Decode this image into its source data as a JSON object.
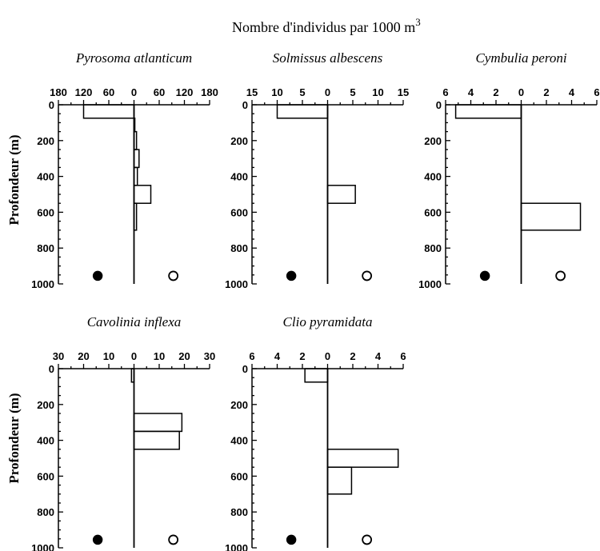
{
  "figure": {
    "title": "Nombre d'individus par 1000 m",
    "title_superscript": "3",
    "ylabel": "Profondeur (m)"
  },
  "chart_data": [
    {
      "type": "bar",
      "title": "Pyrosoma atlanticum",
      "xlim": [
        -180,
        180
      ],
      "x_ticks": [
        -180,
        -120,
        -60,
        0,
        60,
        120,
        180
      ],
      "x_tick_labels": [
        "180",
        "120",
        "60",
        "0",
        "60",
        "120",
        "180"
      ],
      "ylim": [
        0,
        1000
      ],
      "y_ticks": [
        0,
        200,
        400,
        600,
        800,
        1000
      ],
      "day_symbol": "filled-circle",
      "night_symbol": "open-circle",
      "day": [
        {
          "depth": [
            0,
            75
          ],
          "value": 120
        }
      ],
      "night": [
        {
          "depth": [
            75,
            150
          ],
          "value": 2
        },
        {
          "depth": [
            150,
            250
          ],
          "value": 6
        },
        {
          "depth": [
            250,
            350
          ],
          "value": 12
        },
        {
          "depth": [
            350,
            450
          ],
          "value": 8
        },
        {
          "depth": [
            450,
            550
          ],
          "value": 40
        },
        {
          "depth": [
            550,
            700
          ],
          "value": 6
        }
      ]
    },
    {
      "type": "bar",
      "title": "Solmissus albescens",
      "xlim": [
        -15,
        15
      ],
      "x_ticks": [
        -15,
        -10,
        -5,
        0,
        5,
        10,
        15
      ],
      "x_tick_labels": [
        "15",
        "10",
        "5",
        "0",
        "5",
        "10",
        "15"
      ],
      "ylim": [
        0,
        1000
      ],
      "y_ticks": [
        0,
        200,
        400,
        600,
        800,
        1000
      ],
      "day_symbol": "filled-circle",
      "night_symbol": "open-circle",
      "day": [
        {
          "depth": [
            0,
            75
          ],
          "value": 10
        }
      ],
      "night": [
        {
          "depth": [
            450,
            550
          ],
          "value": 5.5
        }
      ]
    },
    {
      "type": "bar",
      "title": "Cymbulia peroni",
      "xlim": [
        -6,
        6
      ],
      "x_ticks": [
        -6,
        -4,
        -2,
        0,
        2,
        4,
        6
      ],
      "x_tick_labels": [
        "6",
        "4",
        "2",
        "0",
        "2",
        "4",
        "6"
      ],
      "ylim": [
        0,
        1000
      ],
      "y_ticks": [
        0,
        200,
        400,
        600,
        800,
        1000
      ],
      "day_symbol": "filled-circle",
      "night_symbol": "open-circle",
      "day": [
        {
          "depth": [
            0,
            75
          ],
          "value": 5.2
        }
      ],
      "night": [
        {
          "depth": [
            550,
            700
          ],
          "value": 4.7
        }
      ]
    },
    {
      "type": "bar",
      "title": "Cavolinia inflexa",
      "xlim": [
        -30,
        30
      ],
      "x_ticks": [
        -30,
        -20,
        -10,
        0,
        10,
        20,
        30
      ],
      "x_tick_labels": [
        "30",
        "20",
        "10",
        "0",
        "10",
        "20",
        "30"
      ],
      "ylim": [
        0,
        1000
      ],
      "y_ticks": [
        0,
        200,
        400,
        600,
        800,
        1000
      ],
      "day_symbol": "filled-circle",
      "night_symbol": "open-circle",
      "day": [
        {
          "depth": [
            0,
            75
          ],
          "value": 1
        }
      ],
      "night": [
        {
          "depth": [
            250,
            350
          ],
          "value": 19
        },
        {
          "depth": [
            350,
            450
          ],
          "value": 18
        }
      ]
    },
    {
      "type": "bar",
      "title": "Clio pyramidata",
      "xlim": [
        -6,
        6
      ],
      "x_ticks": [
        -6,
        -4,
        -2,
        0,
        2,
        4,
        6
      ],
      "x_tick_labels": [
        "6",
        "4",
        "2",
        "0",
        "2",
        "4",
        "6"
      ],
      "ylim": [
        0,
        1000
      ],
      "y_ticks": [
        0,
        200,
        400,
        600,
        800,
        1000
      ],
      "day_symbol": "filled-circle",
      "night_symbol": "open-circle",
      "day": [
        {
          "depth": [
            0,
            75
          ],
          "value": 1.8
        }
      ],
      "night": [
        {
          "depth": [
            450,
            550
          ],
          "value": 5.6
        },
        {
          "depth": [
            550,
            700
          ],
          "value": 1.9
        }
      ]
    }
  ]
}
